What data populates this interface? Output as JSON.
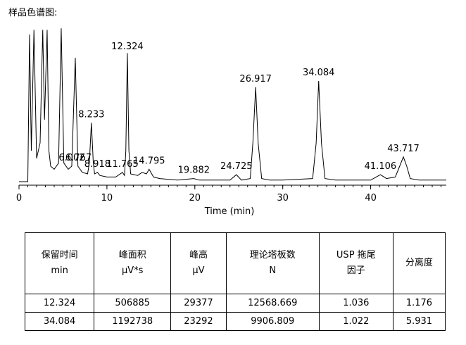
{
  "chart_data": {
    "type": "line",
    "title": "样品色谱图:",
    "x_label": "Time (min)",
    "xlim": [
      0,
      48.6
    ],
    "xticks": [
      0,
      10,
      20,
      30,
      40
    ],
    "ylim": [
      0,
      100
    ],
    "color": "#000000",
    "x": [
      0,
      1.0,
      1.2,
      1.4,
      1.7,
      2.0,
      2.4,
      2.7,
      2.9,
      3.2,
      3.4,
      3.6,
      4.0,
      4.5,
      4.8,
      5.1,
      5.6,
      6.0,
      6.4,
      6.7,
      7.2,
      7.8,
      8.0,
      8.233,
      8.45,
      8.6,
      8.918,
      9.2,
      10,
      11,
      11.765,
      12.0,
      12.15,
      12.324,
      12.5,
      12.7,
      13.5,
      14.0,
      14.5,
      14.795,
      15.3,
      16,
      18,
      19.882,
      20.5,
      24,
      24.725,
      25.3,
      26.3,
      26.6,
      26.917,
      27.2,
      27.6,
      28.5,
      30,
      33.4,
      33.8,
      34.084,
      34.4,
      34.8,
      36,
      40,
      41.106,
      41.8,
      42.8,
      43.3,
      43.717,
      44.1,
      44.5,
      45.5,
      48.6
    ],
    "values": [
      0,
      0,
      95,
      20,
      98,
      15,
      25,
      98,
      40,
      98,
      20,
      10,
      8,
      12,
      99,
      12,
      8,
      10,
      80,
      10,
      6,
      5,
      12,
      38,
      12,
      5,
      6,
      4,
      3,
      3,
      6,
      4,
      20,
      83,
      20,
      5,
      4,
      6,
      5,
      8,
      3,
      2,
      1,
      2,
      1,
      1,
      4.5,
      1,
      2,
      25,
      61,
      25,
      2,
      1,
      1,
      2,
      25,
      65,
      25,
      2,
      1,
      1,
      4.5,
      2,
      3,
      10,
      16,
      10,
      2,
      1,
      1
    ],
    "peak_labels": [
      6.002,
      6.767,
      8.233,
      8.918,
      11.765,
      12.324,
      14.795,
      19.882,
      24.725,
      26.917,
      34.084,
      41.106,
      43.717
    ]
  },
  "table": {
    "header": [
      [
        "保留时间",
        "min"
      ],
      [
        "峰面积",
        "μV*s"
      ],
      [
        "峰高",
        "μV"
      ],
      [
        "理论塔板数",
        "N"
      ],
      [
        "USP 拖尾",
        "因子"
      ],
      [
        "分离度"
      ]
    ],
    "rows": [
      [
        12.324,
        506885,
        29377,
        12568.669,
        1.036,
        1.176
      ],
      [
        34.084,
        1192738,
        23292,
        9906.809,
        1.022,
        5.931
      ]
    ]
  }
}
